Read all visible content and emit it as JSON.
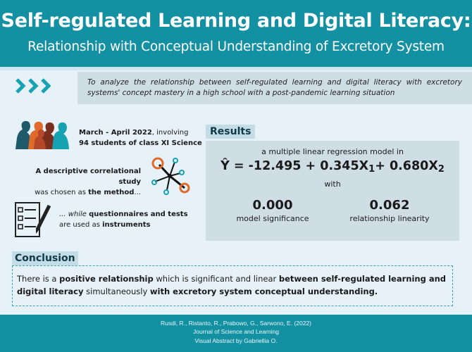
{
  "header": {
    "title": "Self-regulated Learning and Digital Literacy:",
    "subtitle": "Relationship with Conceptual Understanding of Excretory System"
  },
  "objective": {
    "text": "To analyze the relationship between self-regulated learning and digital literacy with excretory systems' concept mastery in a high school with a post-pandemic learning situation"
  },
  "study": {
    "period": "March - April 2022",
    "period_suffix": ", involving",
    "participants": "94 students of class XI Science"
  },
  "method": {
    "part1": "A descriptive correlational study",
    "part2": "was chosen as ",
    "part3": "the method",
    "part4": "..."
  },
  "instruments": {
    "part1": "... while ",
    "part2": "questionnaires and tests",
    "part3": "are used as ",
    "part4": "instruments"
  },
  "results": {
    "label": "Results",
    "intro": "a multiple linear regression model in",
    "eq_lhs": "Ŷ = -12.495 + 0.345X",
    "eq_sub1": "1",
    "eq_mid": "+ 0.680X",
    "eq_sub2": "2",
    "with": "with",
    "significance_value": "0.000",
    "significance_label": "model significance",
    "linearity_value": "0.062",
    "linearity_label": "relationship linearity"
  },
  "conclusion": {
    "label": "Conclusion",
    "t1": "There is a ",
    "t2": "positive relationship",
    "t3": " which is significant and linear ",
    "t4": "between self-regulated learning and digital literacy",
    "t5": " simultaneously ",
    "t6": "with excretory system conceptual understanding."
  },
  "footer": {
    "authors": "Rusdi, R., Ristanto, R., Prabowo, G., Sarwono, E. (2022)",
    "journal": "Journal of Science and Learning",
    "credit": "Visual Abstract by Gabriellia O."
  },
  "colors": {
    "header_bg": "#1490a3",
    "page_bg": "#e6f1f8",
    "box_bg": "#cfdde4",
    "chevron": "#17a2b2",
    "orange": "#e06a2a"
  }
}
